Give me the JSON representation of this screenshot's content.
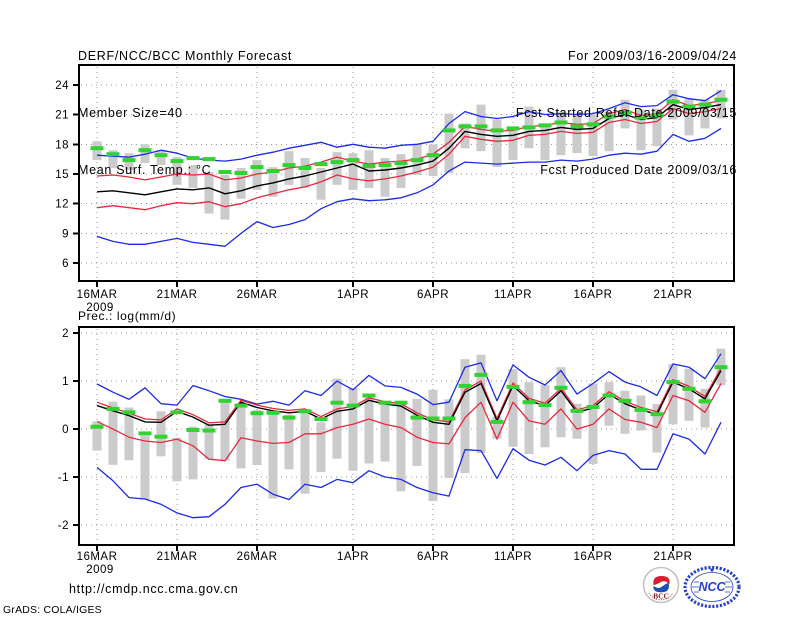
{
  "header": {
    "title": "DERF/NCC/BCC Monthly Forecast",
    "member_size": "Member Size=40",
    "for_range": "For 2009/03/16-2009/04/24",
    "refer_date": "Fcst Started Refer Date 2009/03/15",
    "produced_date": "Fcst Produced Date 2009/03/16"
  },
  "footer": {
    "url": "http://cmdp.ncc.cma.gov.cn",
    "credit": "GrADS: COLA/IGES",
    "logos": [
      {
        "icon": "bcc-logo",
        "label": "BCC"
      },
      {
        "icon": "ncc-logo",
        "label": "NCC"
      }
    ]
  },
  "chart_data": [
    {
      "type": "line",
      "title": "Mean Surf. Temp.: °C",
      "ylim": [
        4.2,
        26.0
      ],
      "yticks": [
        6,
        9,
        12,
        15,
        18,
        21,
        24
      ],
      "xticks": {
        "labels": [
          "16MAR",
          "21MAR",
          "26MAR",
          "1APR",
          "6APR",
          "11APR",
          "16APR",
          "21APR"
        ],
        "days": [
          0,
          5,
          10,
          16,
          21,
          26,
          31,
          36
        ],
        "sub_label": "2009"
      },
      "n_points": 40,
      "grid": true,
      "grid_color": "#999999",
      "legend_position": "none",
      "series": [
        {
          "name": "ensemble-max",
          "color": "#1b2be8",
          "values": [
            16.9,
            16.8,
            16.7,
            17.0,
            17.4,
            17.1,
            16.6,
            16.4,
            16.3,
            16.5,
            16.9,
            17.2,
            17.6,
            17.9,
            18.2,
            17.7,
            18.0,
            17.7,
            17.6,
            17.9,
            18.0,
            18.3,
            20.1,
            21.3,
            20.8,
            20.6,
            20.8,
            21.3,
            21.0,
            21.1,
            21.0,
            21.1,
            21.6,
            22.2,
            21.8,
            21.9,
            23.0,
            22.6,
            22.4,
            23.4
          ]
        },
        {
          "name": "mean-plus-spread",
          "color": "#e82840",
          "values": [
            14.8,
            14.9,
            14.7,
            14.4,
            14.7,
            15.0,
            14.9,
            15.0,
            14.4,
            14.6,
            15.0,
            15.2,
            15.6,
            15.8,
            16.2,
            16.7,
            16.3,
            16.0,
            16.2,
            16.3,
            16.5,
            17.0,
            18.2,
            19.8,
            19.5,
            19.3,
            19.4,
            19.8,
            19.9,
            20.2,
            20.0,
            20.1,
            21.1,
            21.5,
            20.9,
            21.1,
            22.5,
            21.9,
            22.1,
            22.4
          ]
        },
        {
          "name": "ensemble-mean",
          "color": "#000000",
          "values": [
            13.2,
            13.3,
            13.1,
            12.9,
            13.2,
            13.5,
            13.4,
            13.6,
            13.0,
            13.3,
            13.8,
            14.1,
            14.5,
            14.8,
            15.2,
            15.6,
            16.0,
            15.3,
            15.4,
            15.6,
            15.9,
            16.3,
            17.6,
            19.3,
            19.0,
            18.8,
            18.9,
            19.3,
            19.4,
            19.7,
            19.5,
            19.6,
            20.6,
            21.0,
            20.5,
            20.7,
            22.0,
            21.5,
            21.7,
            22.0
          ]
        },
        {
          "name": "mean-minus-spread",
          "color": "#e82840",
          "values": [
            11.6,
            11.8,
            11.6,
            11.4,
            11.8,
            12.1,
            12.0,
            12.2,
            11.7,
            12.0,
            12.6,
            13.0,
            13.4,
            13.7,
            14.2,
            14.9,
            14.5,
            14.3,
            14.5,
            14.8,
            15.2,
            15.7,
            17.0,
            18.8,
            18.5,
            18.3,
            18.4,
            18.9,
            19.0,
            19.3,
            19.1,
            19.2,
            20.2,
            20.5,
            20.1,
            20.3,
            21.6,
            21.1,
            21.3,
            21.6
          ]
        },
        {
          "name": "ensemble-min",
          "color": "#1b2be8",
          "values": [
            8.7,
            8.2,
            7.9,
            7.9,
            8.2,
            8.5,
            8.1,
            7.9,
            7.7,
            9.0,
            10.2,
            9.6,
            9.9,
            10.4,
            11.5,
            12.2,
            12.5,
            12.3,
            12.4,
            12.6,
            13.1,
            13.9,
            15.3,
            16.2,
            16.1,
            16.0,
            16.1,
            16.2,
            16.2,
            16.4,
            16.3,
            16.5,
            16.9,
            17.1,
            17.0,
            17.3,
            19.0,
            18.3,
            18.6,
            19.6
          ]
        }
      ],
      "bars": {
        "name": "member-spread-bar",
        "color": "#cbcbcb",
        "ranges": [
          [
            16.4,
            18.3
          ],
          [
            15.6,
            17.4
          ],
          [
            15.4,
            17.1
          ],
          [
            16.1,
            18.0
          ],
          [
            15.9,
            17.4
          ],
          [
            13.9,
            16.7
          ],
          [
            13.6,
            15.9
          ],
          [
            11.0,
            15.2
          ],
          [
            10.4,
            14.9
          ],
          [
            12.5,
            15.6
          ],
          [
            13.4,
            16.4
          ],
          [
            12.7,
            15.7
          ],
          [
            13.9,
            17.3
          ],
          [
            13.6,
            16.6
          ],
          [
            12.4,
            15.6
          ],
          [
            13.9,
            17.2
          ],
          [
            13.4,
            17.1
          ],
          [
            13.6,
            17.4
          ],
          [
            12.7,
            16.6
          ],
          [
            13.6,
            17.0
          ],
          [
            14.9,
            18.0
          ],
          [
            14.8,
            18.0
          ],
          [
            15.1,
            21.1
          ],
          [
            17.6,
            20.1
          ],
          [
            17.3,
            22.0
          ],
          [
            15.7,
            20.5
          ],
          [
            16.4,
            19.6
          ],
          [
            17.6,
            21.8
          ],
          [
            16.4,
            20.1
          ],
          [
            16.9,
            21.3
          ],
          [
            17.1,
            21.0
          ],
          [
            16.8,
            21.0
          ],
          [
            17.3,
            21.3
          ],
          [
            19.6,
            22.5
          ],
          [
            17.4,
            21.5
          ],
          [
            17.8,
            21.6
          ],
          [
            20.5,
            23.5
          ],
          [
            18.9,
            22.6
          ],
          [
            19.6,
            22.5
          ],
          [
            20.6,
            23.5
          ]
        ]
      },
      "dashes": {
        "name": "observation-dash",
        "color": "#32d232",
        "values": [
          17.6,
          17.0,
          16.4,
          17.4,
          16.9,
          16.3,
          16.6,
          16.5,
          15.2,
          15.1,
          15.7,
          15.3,
          15.9,
          15.6,
          16.0,
          16.2,
          16.4,
          15.8,
          15.9,
          16.1,
          16.4,
          16.9,
          19.4,
          19.8,
          19.8,
          19.4,
          19.6,
          19.7,
          19.9,
          20.2,
          19.8,
          20.0,
          20.8,
          21.2,
          20.7,
          20.9,
          22.3,
          21.8,
          22.0,
          22.5
        ]
      }
    },
    {
      "type": "line",
      "title": "Prec.: log(mm/d)",
      "ylim": [
        -2.42,
        2.13
      ],
      "yticks": [
        -2,
        -1,
        0,
        1,
        2
      ],
      "xticks": {
        "labels": [
          "16MAR",
          "21MAR",
          "26MAR",
          "1APR",
          "6APR",
          "11APR",
          "16APR",
          "21APR"
        ],
        "days": [
          0,
          5,
          10,
          16,
          21,
          26,
          31,
          36
        ],
        "sub_label": "2009"
      },
      "n_points": 40,
      "grid": true,
      "grid_color": "#999999",
      "legend_position": "none",
      "series": [
        {
          "name": "ensemble-max",
          "color": "#1b2be8",
          "values": [
            0.94,
            0.77,
            0.62,
            0.86,
            0.53,
            0.5,
            0.91,
            0.8,
            0.68,
            0.62,
            0.52,
            0.58,
            0.5,
            0.8,
            0.7,
            1.0,
            0.82,
            1.12,
            0.9,
            0.87,
            0.73,
            0.51,
            0.56,
            1.29,
            1.38,
            0.59,
            1.34,
            1.08,
            0.92,
            1.22,
            0.73,
            0.95,
            1.2,
            0.98,
            0.88,
            0.7,
            1.36,
            1.29,
            1.05,
            1.57
          ]
        },
        {
          "name": "mean-plus-spread",
          "color": "#e82840",
          "values": [
            0.56,
            0.44,
            0.33,
            0.21,
            0.19,
            0.42,
            0.3,
            0.13,
            0.15,
            0.6,
            0.5,
            0.43,
            0.39,
            0.42,
            0.26,
            0.42,
            0.47,
            0.65,
            0.57,
            0.53,
            0.34,
            0.19,
            0.15,
            0.82,
            1.0,
            0.22,
            0.96,
            0.64,
            0.54,
            0.85,
            0.4,
            0.49,
            0.78,
            0.58,
            0.45,
            0.36,
            1.03,
            0.89,
            0.68,
            1.27
          ]
        },
        {
          "name": "ensemble-mean",
          "color": "#000000",
          "values": [
            0.49,
            0.38,
            0.28,
            0.15,
            0.14,
            0.37,
            0.25,
            0.08,
            0.1,
            0.56,
            0.45,
            0.38,
            0.34,
            0.37,
            0.21,
            0.37,
            0.42,
            0.6,
            0.52,
            0.48,
            0.29,
            0.14,
            0.1,
            0.77,
            0.95,
            0.17,
            0.91,
            0.59,
            0.49,
            0.8,
            0.35,
            0.44,
            0.73,
            0.53,
            0.4,
            0.31,
            0.98,
            0.84,
            0.63,
            1.22
          ]
        },
        {
          "name": "mean-minus-spread",
          "color": "#e82840",
          "values": [
            0.16,
            0.0,
            -0.17,
            -0.25,
            -0.28,
            -0.21,
            -0.35,
            -0.63,
            -0.66,
            -0.18,
            -0.25,
            -0.3,
            -0.28,
            -0.1,
            -0.1,
            0.03,
            0.1,
            0.21,
            0.1,
            0.03,
            -0.17,
            -0.28,
            -0.31,
            0.24,
            0.56,
            -0.21,
            0.56,
            0.17,
            0.1,
            0.42,
            0.0,
            0.1,
            0.42,
            0.2,
            0.14,
            0.03,
            0.7,
            0.59,
            0.35,
            0.95
          ]
        },
        {
          "name": "ensemble-min",
          "color": "#1b2be8",
          "values": [
            -0.8,
            -1.08,
            -1.43,
            -1.46,
            -1.57,
            -1.75,
            -1.85,
            -1.83,
            -1.57,
            -1.22,
            -1.15,
            -1.36,
            -1.47,
            -1.15,
            -1.22,
            -1.05,
            -1.12,
            -0.87,
            -1.0,
            -1.05,
            -1.22,
            -1.33,
            -1.4,
            -0.43,
            -0.45,
            -1.03,
            -0.41,
            -0.65,
            -0.75,
            -0.59,
            -0.87,
            -0.55,
            -0.45,
            -0.52,
            -0.84,
            -0.84,
            -0.1,
            -0.21,
            -0.52,
            0.14
          ]
        }
      ],
      "bars": {
        "name": "member-spread-bar",
        "color": "#cbcbcb",
        "ranges": [
          [
            -0.45,
            0.16
          ],
          [
            -0.75,
            0.57
          ],
          [
            -0.65,
            0.45
          ],
          [
            -1.47,
            -0.14
          ],
          [
            -0.57,
            0.37
          ],
          [
            -1.09,
            -0.18
          ],
          [
            -1.05,
            0.05
          ],
          [
            -0.63,
            0.1
          ],
          [
            -0.66,
            0.59
          ],
          [
            -0.82,
            0.53
          ],
          [
            -0.75,
            0.4
          ],
          [
            -1.45,
            0.37
          ],
          [
            -0.84,
            0.3
          ],
          [
            -1.35,
            0.42
          ],
          [
            -0.9,
            0.14
          ],
          [
            -0.62,
            1.05
          ],
          [
            -0.87,
            0.86
          ],
          [
            -0.72,
            0.7
          ],
          [
            -0.68,
            0.55
          ],
          [
            -1.3,
            0.56
          ],
          [
            -0.77,
            0.63
          ],
          [
            -1.5,
            0.82
          ],
          [
            -1.02,
            0.62
          ],
          [
            -0.92,
            1.46
          ],
          [
            -0.5,
            1.55
          ],
          [
            -0.2,
            0.26
          ],
          [
            -0.37,
            1.25
          ],
          [
            -0.52,
            0.98
          ],
          [
            -0.38,
            0.92
          ],
          [
            -0.17,
            1.29
          ],
          [
            -0.2,
            0.53
          ],
          [
            -0.73,
            0.95
          ],
          [
            0.07,
            0.98
          ],
          [
            -0.1,
            0.8
          ],
          [
            -0.03,
            0.7
          ],
          [
            -0.49,
            0.52
          ],
          [
            0.1,
            1.36
          ],
          [
            0.17,
            1.26
          ],
          [
            0.03,
            0.84
          ],
          [
            0.92,
            1.68
          ]
        ]
      },
      "dashes": {
        "name": "observation-dash",
        "color": "#32d232",
        "values": [
          0.05,
          0.42,
          0.35,
          -0.09,
          -0.16,
          0.35,
          -0.02,
          -0.03,
          0.59,
          0.49,
          0.33,
          0.34,
          0.24,
          0.37,
          0.21,
          0.55,
          0.49,
          0.7,
          0.55,
          0.55,
          0.24,
          0.22,
          0.22,
          0.9,
          1.13,
          0.15,
          0.88,
          0.56,
          0.5,
          0.86,
          0.38,
          0.46,
          0.7,
          0.59,
          0.4,
          0.31,
          0.98,
          0.84,
          0.58,
          1.29
        ]
      }
    }
  ]
}
